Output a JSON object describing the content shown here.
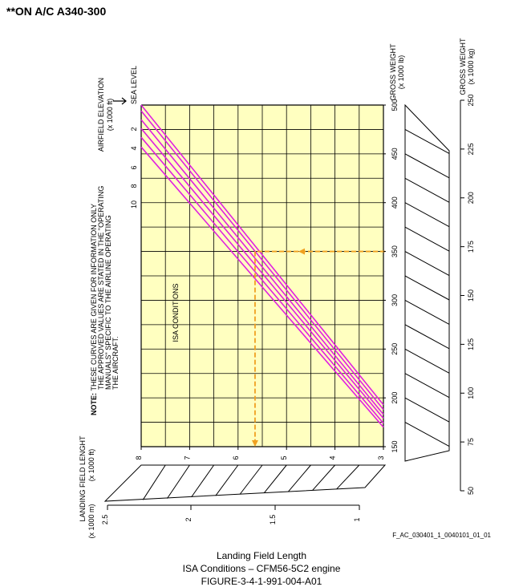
{
  "header": "**ON A/C A340-300",
  "figure_ref": "F_AC_030401_1_0040101_01_01",
  "caption": {
    "line1": "Landing Field Length",
    "line2": "ISA Conditions – CFM56-5C2 engine",
    "line3": "FIGURE-3-4-1-991-004-A01"
  },
  "chart_data": {
    "type": "line",
    "orientation": "rotated",
    "title": "Landing Field Length",
    "left_axis": {
      "label_line1": "AIRFIELD ELEVATION",
      "label_line2": "(x 1000 ft)",
      "sea_level_label": "SEA LEVEL",
      "ticks": [
        "2",
        "4",
        "6",
        "8",
        "10"
      ]
    },
    "x_axis_lbs": {
      "label_line1": "GROSS WEIGHT",
      "label_line2": "(x 1000 lb)",
      "range": [
        150,
        500
      ],
      "ticks": [
        150,
        200,
        250,
        300,
        350,
        400,
        450,
        500
      ]
    },
    "x_axis_kg": {
      "label_line1": "GROSS WEIGHT",
      "label_line2": "(x 1000 kg)",
      "ticks": [
        50,
        75,
        100,
        125,
        150,
        175,
        200,
        225,
        250
      ]
    },
    "y_axis_ft": {
      "label_line1": "LANDING FIELD LENGHT",
      "label_line2": "(x 1000 ft)",
      "range": [
        3,
        8
      ],
      "ticks": [
        3,
        4,
        5,
        6,
        7,
        8
      ]
    },
    "y_axis_m": {
      "label_line1": "(x 1000 m)",
      "ticks": [
        1,
        1.5,
        2,
        2.5
      ]
    },
    "note": {
      "prefix": "NOTE:",
      "lines": [
        "THESE CURVES ARE GIVEN FOR INFORMATION ONLY",
        "THE APPROVED VALUES ARE STATED IN THE \"OPERATING",
        "MANUALS\" SPECIFIC TO THE AIRLINE OPERATING",
        "THE AIRCRAFT."
      ]
    },
    "annotation": "ISA CONDITIONS",
    "series": [
      {
        "elevation": 0,
        "points": [
          [
            193,
            3
          ],
          [
            500,
            8
          ]
        ]
      },
      {
        "elevation": 2,
        "points": [
          [
            188,
            3
          ],
          [
            494,
            8
          ]
        ]
      },
      {
        "elevation": 4,
        "points": [
          [
            183,
            3
          ],
          [
            485,
            8
          ]
        ]
      },
      {
        "elevation": 6,
        "points": [
          [
            179,
            3
          ],
          [
            476,
            8
          ]
        ]
      },
      {
        "elevation": 8,
        "points": [
          [
            174,
            3
          ],
          [
            467,
            8
          ]
        ]
      },
      {
        "elevation": 10,
        "points": [
          [
            170,
            3
          ],
          [
            457,
            8
          ]
        ]
      }
    ],
    "example": {
      "gross_weight_lb": 350,
      "landing_length_ft": 5.65
    },
    "colors": {
      "grid_fill": "#ffffc0",
      "curves": "#e020e0",
      "example": "#f0a020",
      "grid": "#000000"
    }
  }
}
